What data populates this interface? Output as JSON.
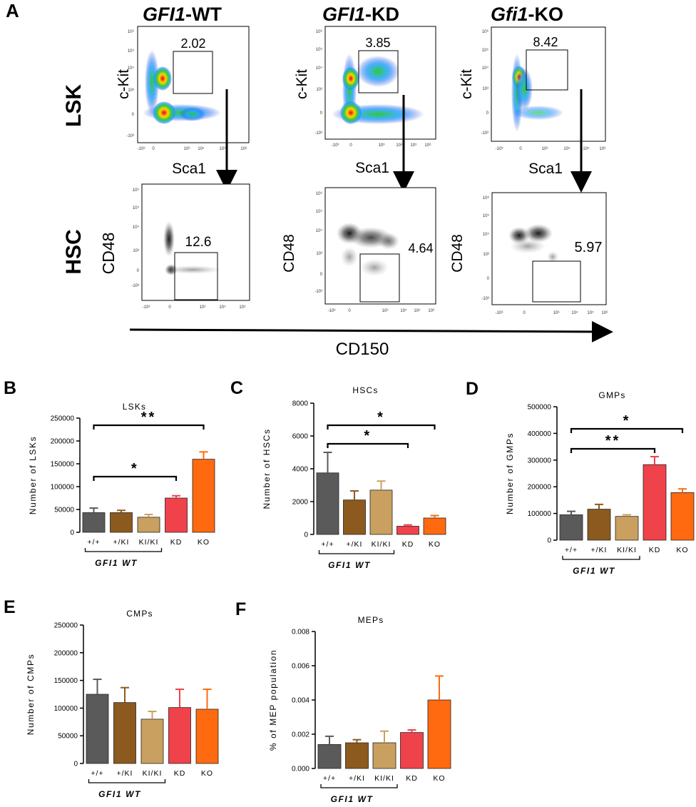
{
  "panel_a": {
    "label": "A",
    "columns": [
      {
        "gene": "GFI1",
        "suffix": "-WT",
        "lsk_value": "2.02",
        "hsc_value": "12.6"
      },
      {
        "gene": "GFI1",
        "suffix": "-KD",
        "lsk_value": "3.85",
        "hsc_value": "4.64"
      },
      {
        "gene": "Gfi1",
        "suffix": "-KO",
        "lsk_value": "8.42",
        "hsc_value": "5.97"
      }
    ],
    "row_labels": [
      "LSK",
      "HSC"
    ],
    "lsk_ylabel": "c-Kit",
    "lsk_xlabel": "Sca1",
    "hsc_ylabel": "CD48",
    "cd150_label": "CD150",
    "y_ticks": [
      "10⁶",
      "10⁵",
      "10⁴",
      "10³",
      "0",
      "-10³"
    ],
    "x_ticks": [
      "-10³",
      "0",
      "10³",
      "10⁴",
      "10⁵",
      "10⁶"
    ]
  },
  "group_label": "GFI1 WT",
  "colors": {
    "wt": "#5a5a5a",
    "het": "#8c5a1e",
    "ki": "#c9a060",
    "kd": "#f0424a",
    "ko": "#ff6a10"
  },
  "chart_data": [
    {
      "panel": "B",
      "type": "bar",
      "title": "LSKs",
      "ylabel": "Number of LSKs",
      "categories": [
        "+/+",
        "+/KI",
        "KI/KI",
        "KD",
        "KO"
      ],
      "values": [
        43000,
        43000,
        33000,
        75000,
        160000
      ],
      "errors": [
        10000,
        5000,
        6000,
        5000,
        16000
      ],
      "ylim": [
        0,
        250000
      ],
      "yticks": [
        0,
        50000,
        100000,
        150000,
        200000,
        250000
      ],
      "annotations": [
        {
          "from": 0,
          "to": 3,
          "label": "*"
        },
        {
          "from": 0,
          "to": 4,
          "label": "**"
        }
      ]
    },
    {
      "panel": "C",
      "type": "bar",
      "title": "HSCs",
      "ylabel": "Number of HSCs",
      "categories": [
        "+/+",
        "+/KI",
        "KI/KI",
        "KD",
        "KO"
      ],
      "values": [
        3750,
        2100,
        2700,
        500,
        1000
      ],
      "errors": [
        1250,
        550,
        550,
        80,
        150
      ],
      "ylim": [
        0,
        8000
      ],
      "yticks": [
        0,
        2000,
        4000,
        6000,
        8000
      ],
      "annotations": [
        {
          "from": 0,
          "to": 3,
          "label": "*"
        },
        {
          "from": 0,
          "to": 4,
          "label": "*"
        }
      ]
    },
    {
      "panel": "D",
      "type": "bar",
      "title": "GMPs",
      "ylabel": "Number of GMPs",
      "categories": [
        "+/+",
        "+/KI",
        "KI/KI",
        "KD",
        "KO"
      ],
      "values": [
        95000,
        116000,
        89000,
        283000,
        178000
      ],
      "errors": [
        13000,
        18000,
        6000,
        30000,
        14000
      ],
      "ylim": [
        0,
        500000
      ],
      "yticks": [
        0,
        100000,
        200000,
        300000,
        400000,
        500000
      ],
      "annotations": [
        {
          "from": 0,
          "to": 3,
          "label": "**"
        },
        {
          "from": 0,
          "to": 4,
          "label": "*"
        }
      ]
    },
    {
      "panel": "E",
      "type": "bar",
      "title": "CMPs",
      "ylabel": "Number of CMPs",
      "categories": [
        "+/+",
        "+/KI",
        "KI/KI",
        "KD",
        "KO"
      ],
      "values": [
        125000,
        110000,
        80000,
        101000,
        98000
      ],
      "errors": [
        27000,
        27000,
        14000,
        33000,
        36000
      ],
      "ylim": [
        0,
        250000
      ],
      "yticks": [
        0,
        50000,
        100000,
        150000,
        200000,
        250000
      ],
      "annotations": []
    },
    {
      "panel": "F",
      "type": "bar",
      "title": "MEPs",
      "ylabel": "% of MEP population",
      "categories": [
        "+/+",
        "+/KI",
        "KI/KI",
        "KD",
        "KO"
      ],
      "values": [
        0.0014,
        0.0015,
        0.0015,
        0.0021,
        0.004
      ],
      "errors": [
        0.00048,
        0.00018,
        0.00068,
        0.00015,
        0.0014
      ],
      "ylim": [
        0,
        0.008
      ],
      "yticks": [
        "0.000",
        "0.002",
        "0.004",
        "0.006",
        "0.008"
      ],
      "annotations": []
    }
  ]
}
